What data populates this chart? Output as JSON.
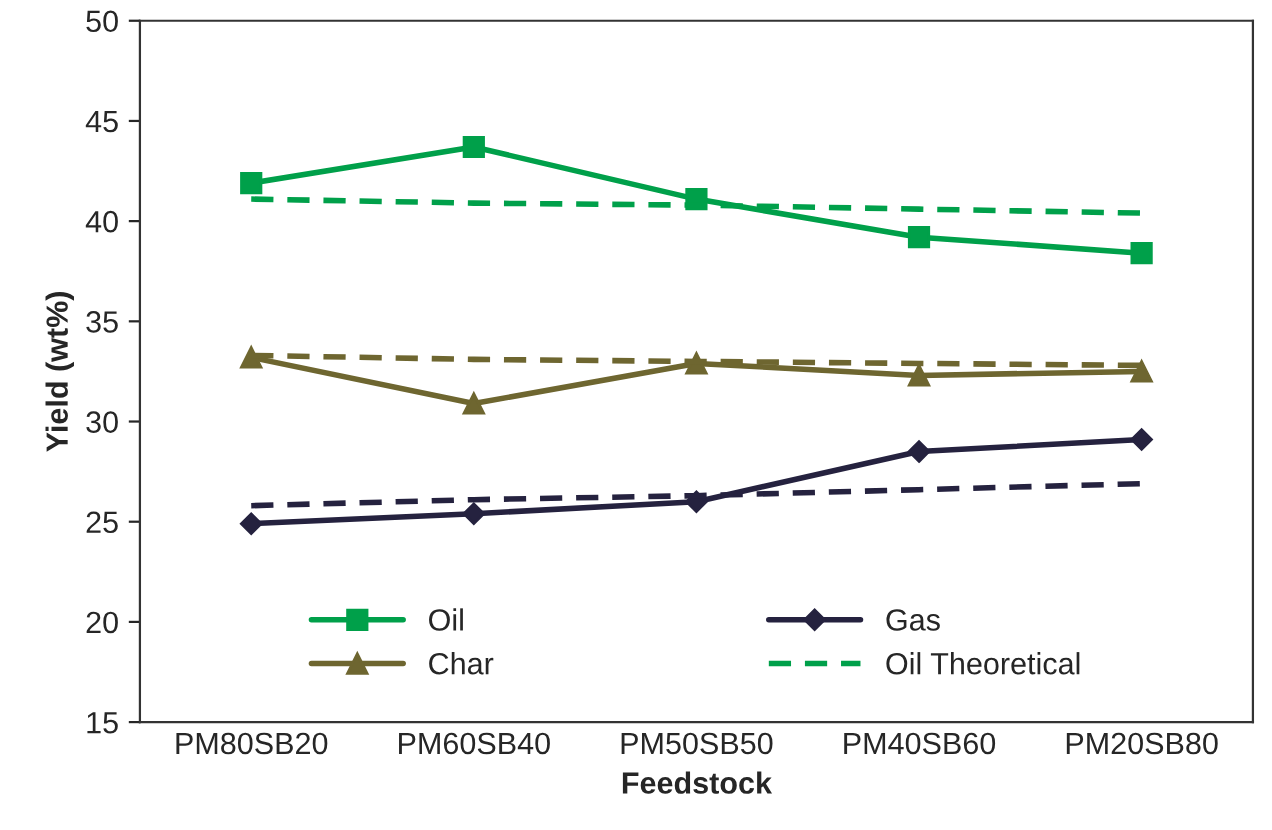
{
  "chart_data": {
    "type": "line",
    "xlabel": "Feedstock",
    "ylabel": "Yield (wt%)",
    "categories": [
      "PM80SB20",
      "PM60SB40",
      "PM50SB50",
      "PM40SB60",
      "PM20SB80"
    ],
    "series": [
      {
        "name": "Oil",
        "color": "#00a04a",
        "marker": "square",
        "line_style": "solid",
        "values": [
          41.9,
          43.7,
          41.1,
          39.2,
          38.4
        ]
      },
      {
        "name": "Char",
        "color": "#6e6630",
        "marker": "triangle",
        "line_style": "solid",
        "values": [
          33.2,
          30.9,
          32.9,
          32.3,
          32.5
        ]
      },
      {
        "name": "Gas",
        "color": "#25223f",
        "marker": "diamond",
        "line_style": "solid",
        "values": [
          24.9,
          25.4,
          26.0,
          28.5,
          29.1
        ]
      },
      {
        "name": "Oil Theoretical",
        "color": "#00a04a",
        "marker": "none",
        "line_style": "dashed",
        "values": [
          41.1,
          40.9,
          40.8,
          40.6,
          40.4
        ]
      },
      {
        "color": "#6e6630",
        "marker": "none",
        "line_style": "dashed",
        "values": [
          33.3,
          33.1,
          33.0,
          32.9,
          32.8
        ]
      },
      {
        "color": "#25223f",
        "marker": "none",
        "line_style": "dashed",
        "values": [
          25.8,
          26.1,
          26.3,
          26.6,
          26.9
        ]
      }
    ],
    "ylim": [
      15,
      50
    ],
    "yticks": [
      15,
      20,
      25,
      30,
      35,
      40,
      45,
      50
    ],
    "grid": false,
    "legend": "bottom"
  }
}
